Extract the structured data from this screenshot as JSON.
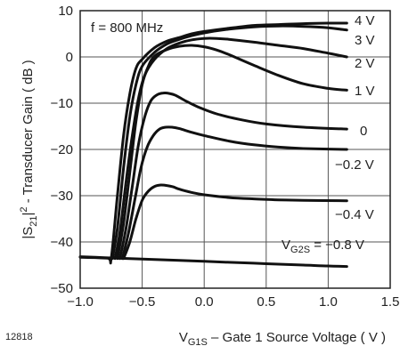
{
  "figure_id": "12818",
  "chart_data": {
    "type": "line",
    "xlim": [
      -1.0,
      1.5
    ],
    "ylim": [
      -50,
      10
    ],
    "x_ticks": [
      -1.0,
      -0.5,
      0,
      0.5,
      1.0,
      1.5
    ],
    "x_tick_labels": [
      "−1.0",
      "−0.5",
      "0.0",
      "0.5",
      "1.0",
      "1.5"
    ],
    "y_ticks": [
      -50,
      -40,
      -30,
      -20,
      -10,
      0,
      10
    ],
    "y_tick_labels": [
      "−50",
      "−40",
      "−30",
      "−20",
      "−10",
      "0",
      "10"
    ],
    "ylabel": "|S21|² - Transducer Gain ( dB )",
    "ylabel_parts": {
      "pre": "|S",
      "sub": "21",
      "post": "|",
      "sup": "2",
      "rest": " - Transducer Gain ( dB )"
    },
    "xlabel": "VG1S – Gate 1 Source Voltage ( V )",
    "xlabel_parts": {
      "pre": "V",
      "sub": "G1S",
      "rest": " – Gate 1 Source Voltage ( V )"
    },
    "annotation": "f = 800 MHz",
    "param_label": {
      "pre": "V",
      "sub": "G2S",
      "rest": " = "
    },
    "grid": true,
    "series": [
      {
        "name": "4 V",
        "x": [
          -1.0,
          -0.78,
          -0.75,
          -0.7,
          -0.65,
          -0.6,
          -0.55,
          -0.5,
          -0.4,
          -0.3,
          -0.2,
          -0.1,
          0.0,
          0.2,
          0.4,
          0.6,
          0.8,
          1.0,
          1.15
        ],
        "y": [
          -43.3,
          -43.5,
          -43.6,
          -30,
          -17,
          -8,
          -2.5,
          -0.5,
          2.0,
          3.4,
          4.2,
          5.0,
          5.5,
          6.2,
          6.8,
          7.0,
          7.2,
          7.3,
          7.3
        ]
      },
      {
        "name": "3 V",
        "x": [
          -0.74,
          -0.7,
          -0.65,
          -0.6,
          -0.55,
          -0.5,
          -0.4,
          -0.3,
          -0.2,
          -0.1,
          0.0,
          0.2,
          0.4,
          0.6,
          0.8,
          1.0,
          1.15
        ],
        "y": [
          -43.6,
          -37,
          -24,
          -13,
          -6,
          -2,
          1.0,
          2.8,
          3.8,
          4.6,
          5.2,
          6.0,
          6.5,
          6.7,
          6.6,
          6.3,
          5.8
        ]
      },
      {
        "name": "2 V",
        "x": [
          -0.72,
          -0.68,
          -0.63,
          -0.58,
          -0.53,
          -0.48,
          -0.4,
          -0.3,
          -0.2,
          -0.1,
          0.0,
          0.1,
          0.2,
          0.4,
          0.6,
          0.8,
          1.0,
          1.15
        ],
        "y": [
          -43.6,
          -38,
          -27,
          -17,
          -9,
          -4,
          -0.5,
          1.8,
          3.0,
          3.7,
          4.0,
          4.0,
          3.8,
          3.2,
          2.5,
          1.8,
          0.8,
          0.0
        ]
      },
      {
        "name": "1 V",
        "x": [
          -0.7,
          -0.65,
          -0.6,
          -0.55,
          -0.5,
          -0.45,
          -0.4,
          -0.3,
          -0.2,
          -0.1,
          0.0,
          0.1,
          0.2,
          0.4,
          0.6,
          0.8,
          1.0,
          1.15
        ],
        "y": [
          -43.6,
          -36,
          -25,
          -14,
          -6,
          -2,
          0.2,
          1.6,
          2.3,
          2.5,
          2.2,
          1.5,
          0.5,
          -1.8,
          -4.0,
          -5.8,
          -6.8,
          -7.2
        ]
      },
      {
        "name": "0",
        "x": [
          -0.68,
          -0.63,
          -0.58,
          -0.53,
          -0.48,
          -0.43,
          -0.38,
          -0.33,
          -0.28,
          -0.23,
          -0.15,
          -0.05,
          0.1,
          0.3,
          0.5,
          0.8,
          1.15
        ],
        "y": [
          -43.6,
          -37,
          -28,
          -19,
          -13,
          -9.5,
          -8.2,
          -7.8,
          -7.9,
          -8.3,
          -9.5,
          -10.8,
          -12.3,
          -13.6,
          -14.5,
          -15.2,
          -15.6
        ]
      },
      {
        "name": "−0.2 V",
        "x": [
          -0.66,
          -0.61,
          -0.56,
          -0.51,
          -0.46,
          -0.41,
          -0.36,
          -0.31,
          -0.26,
          -0.2,
          -0.1,
          0.0,
          0.2,
          0.4,
          0.6,
          0.8,
          1.15
        ],
        "y": [
          -43.6,
          -38,
          -31,
          -24,
          -19.5,
          -17,
          -15.6,
          -15.2,
          -15.2,
          -15.5,
          -16.3,
          -17.0,
          -18.2,
          -19.0,
          -19.5,
          -19.8,
          -20.0
        ]
      },
      {
        "name": "−0.4 V",
        "x": [
          -0.65,
          -0.6,
          -0.55,
          -0.5,
          -0.45,
          -0.4,
          -0.35,
          -0.3,
          -0.25,
          -0.2,
          -0.1,
          0.0,
          0.2,
          0.4,
          0.6,
          0.8,
          1.15
        ],
        "y": [
          -43.6,
          -40,
          -35,
          -31,
          -29,
          -28,
          -27.7,
          -27.8,
          -28.1,
          -28.6,
          -29.3,
          -29.8,
          -30.4,
          -30.7,
          -30.9,
          -31.0,
          -31.1
        ]
      },
      {
        "name": "−0.8 V",
        "x": [
          -1.0,
          -0.8,
          -0.6,
          -0.4,
          -0.2,
          0.0,
          0.2,
          0.4,
          0.6,
          0.8,
          1.0,
          1.15
        ],
        "y": [
          -43.2,
          -43.4,
          -43.6,
          -43.8,
          -44.0,
          -44.2,
          -44.4,
          -44.6,
          -44.8,
          -45.0,
          -45.2,
          -45.3
        ]
      }
    ]
  }
}
